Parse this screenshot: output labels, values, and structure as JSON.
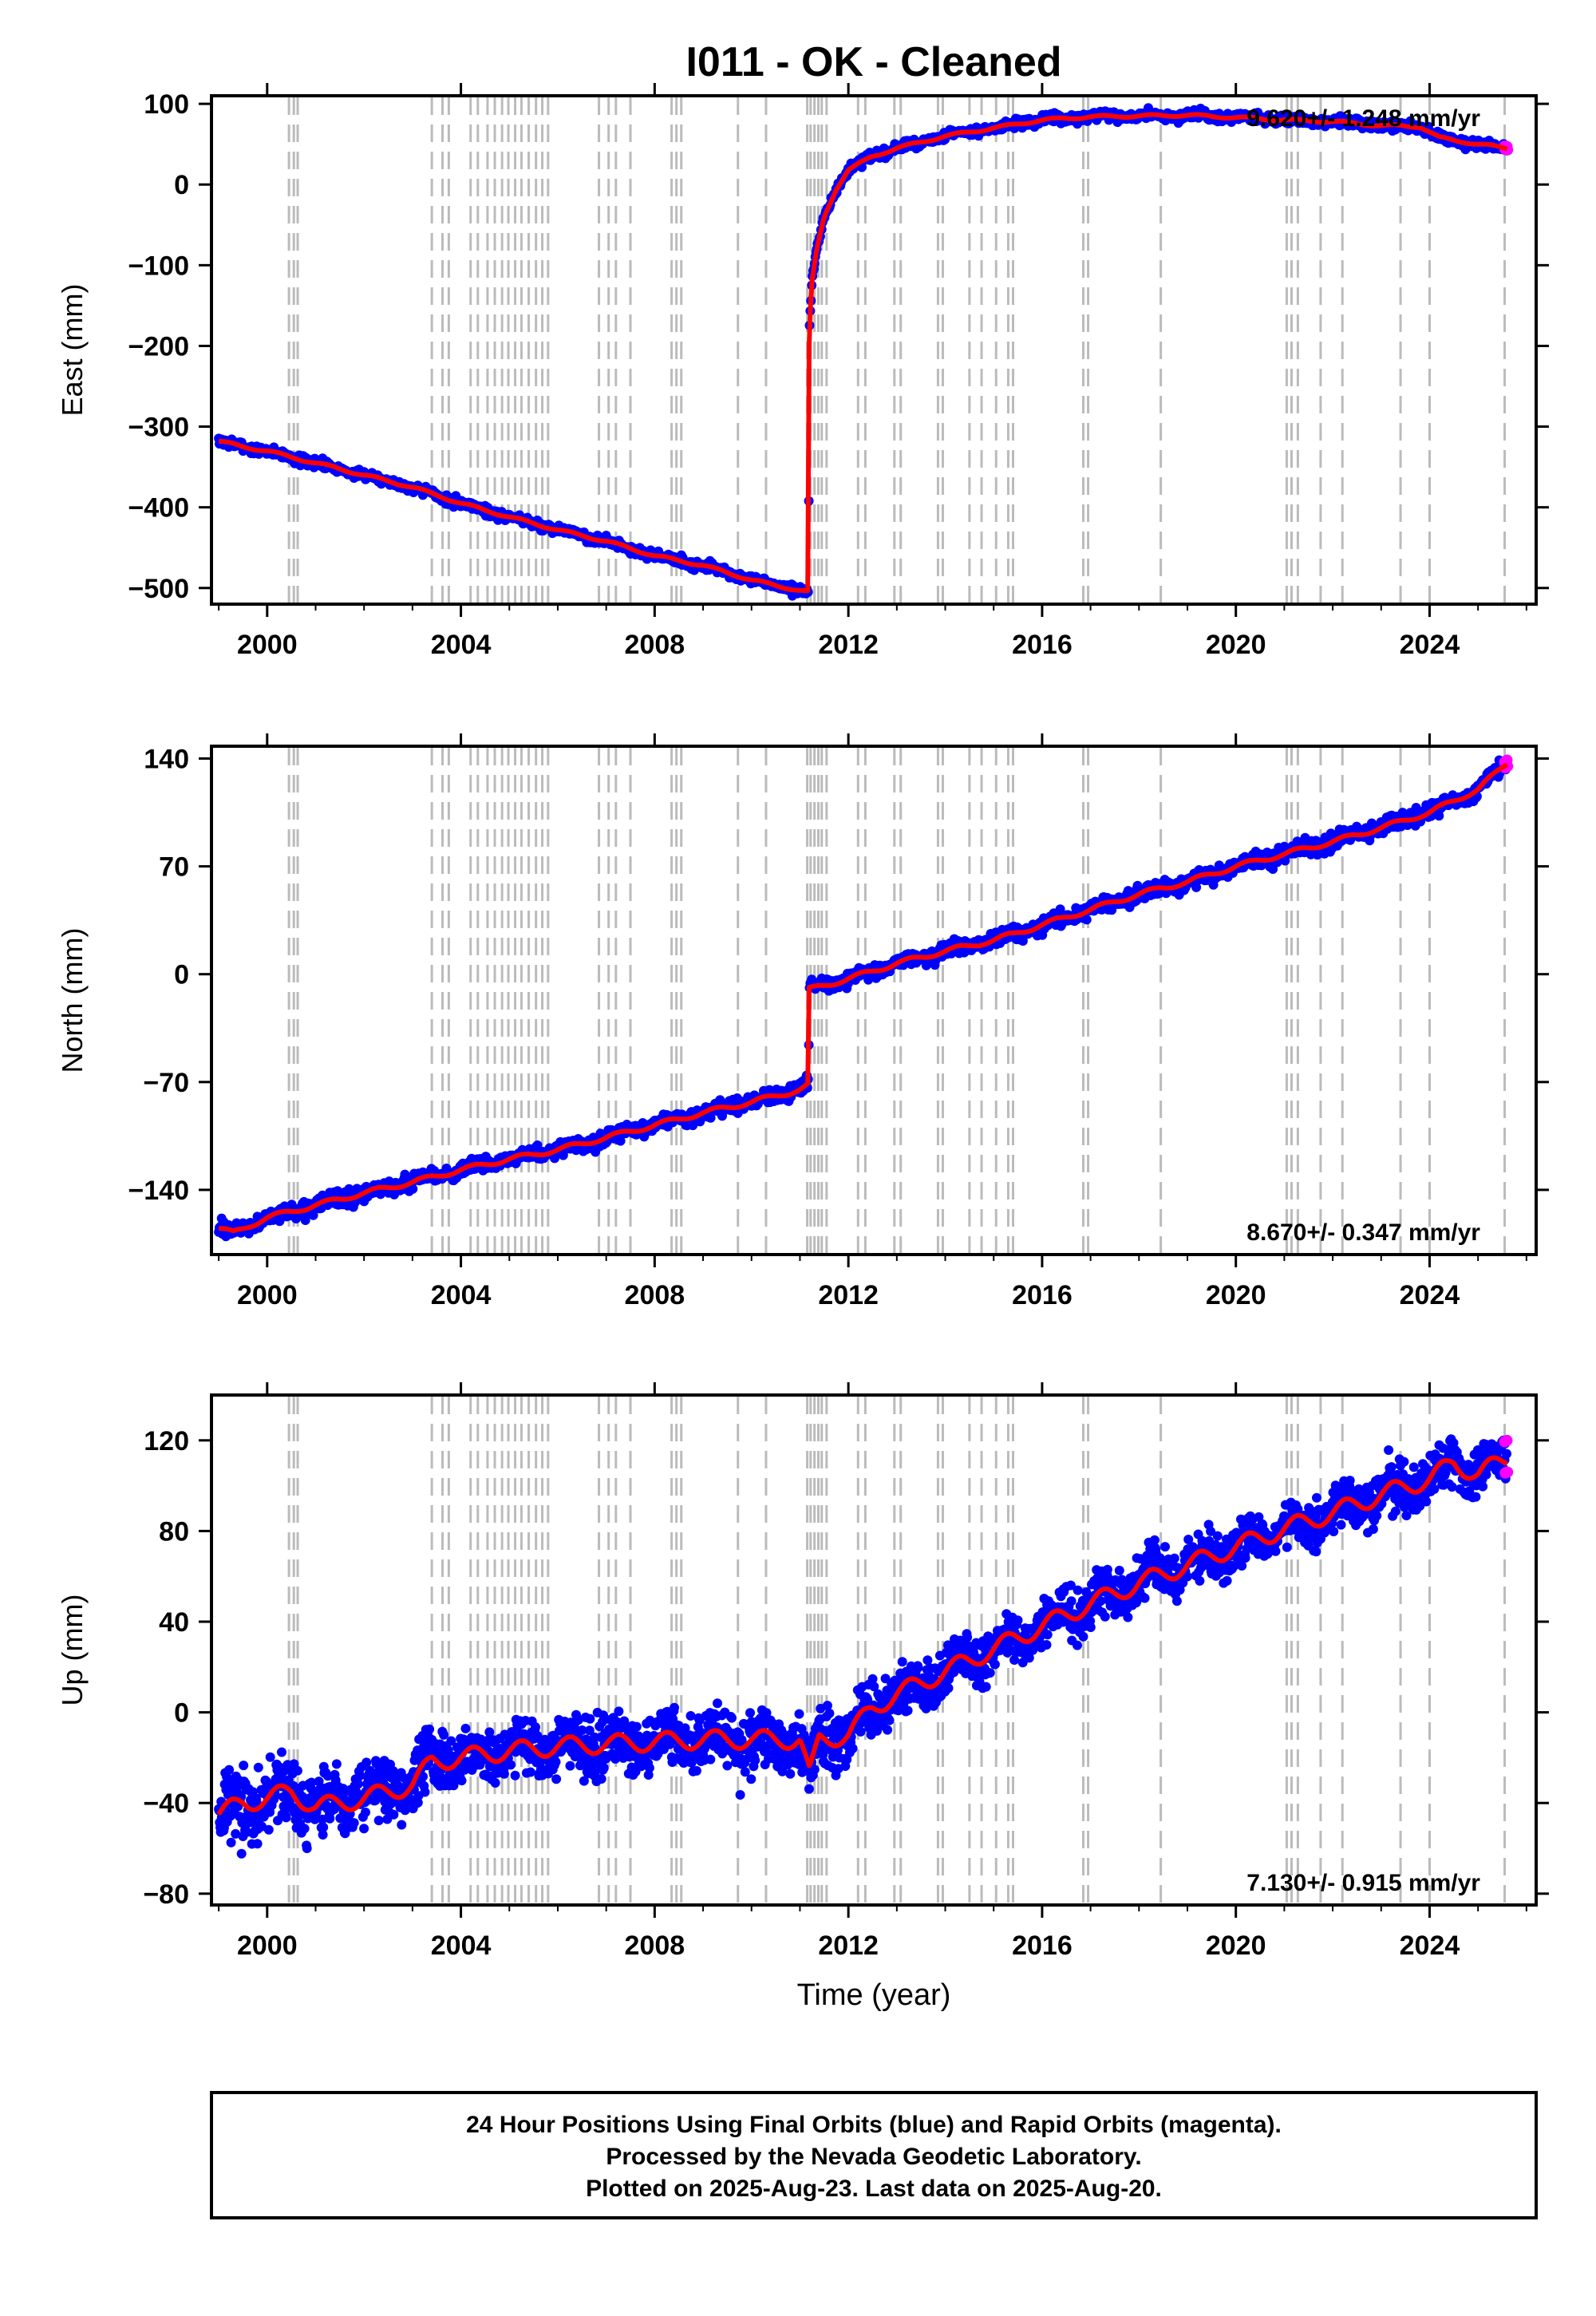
{
  "title": "I011  - OK - Cleaned",
  "xlabel": "Time (year)",
  "footer": {
    "line1": "24 Hour Positions Using Final Orbits (blue) and Rapid Orbits (magenta).",
    "line2": "Processed by the Nevada Geodetic Laboratory.",
    "line3": "Plotted on 2025-Aug-23. Last data on 2025-Aug-20."
  },
  "colors": {
    "final": "#0000ff",
    "rapid": "#ff00ff",
    "model": "#ff0000",
    "event_lines": "#bbbbbb",
    "axes": "#000000"
  },
  "chart_data": [
    {
      "type": "scatter",
      "panel": "east",
      "ylabel": "East (mm)",
      "rate_label": "9.620+/- 1.248 mm/yr",
      "rate_position": "top-right",
      "xlim": [
        1998.85,
        2026.2
      ],
      "ylim": [
        -520,
        110
      ],
      "xticks": [
        2000,
        2004,
        2008,
        2012,
        2016,
        2020,
        2024
      ],
      "yticks": [
        100,
        0,
        -100,
        -200,
        -300,
        -400,
        -500
      ],
      "ytick_labels": [
        "100",
        "0",
        "−100",
        "−200",
        "−300",
        "−400",
        "−500"
      ],
      "series": [
        {
          "x": [
            1999.0,
            1999.5,
            2000.0,
            2000.5,
            2001.0,
            2002.0,
            2003.0,
            2004.0,
            2005.0,
            2006.0,
            2007.0,
            2008.0,
            2009.0,
            2010.0,
            2010.5,
            2011.18,
            2011.19,
            2011.2,
            2011.25,
            2011.35,
            2011.5,
            2011.75,
            2012.0,
            2012.5,
            2013.0,
            2014.0,
            2015.0,
            2016.0,
            2017.0,
            2018.0,
            2019.0,
            2020.0,
            2021.0,
            2022.0,
            2023.0,
            2023.8,
            2024.2,
            2025.0,
            2025.6
          ],
          "y": [
            -318,
            -325,
            -330,
            -338,
            -345,
            -360,
            -375,
            -395,
            -412,
            -428,
            -442,
            -460,
            -472,
            -490,
            -497,
            -505,
            -200,
            -170,
            -120,
            -80,
            -40,
            -5,
            18,
            35,
            45,
            60,
            70,
            80,
            84,
            85,
            86,
            83,
            80,
            78,
            73,
            72,
            58,
            50,
            45
          ]
        }
      ]
    },
    {
      "type": "scatter",
      "panel": "north",
      "ylabel": "North (mm)",
      "rate_label": "8.670+/- 0.347 mm/yr",
      "rate_position": "bottom-right",
      "xlim": [
        1998.85,
        2026.2
      ],
      "ylim": [
        -182,
        148
      ],
      "xticks": [
        2000,
        2004,
        2008,
        2012,
        2016,
        2020,
        2024
      ],
      "yticks": [
        140,
        70,
        0,
        -70,
        -140
      ],
      "ytick_labels": [
        "140",
        "70",
        "0",
        "−70",
        "−140"
      ],
      "series": [
        {
          "x": [
            1999.0,
            1999.3,
            2000.0,
            2001.0,
            2002.0,
            2003.0,
            2004.0,
            2005.0,
            2006.0,
            2007.0,
            2008.0,
            2009.0,
            2010.0,
            2011.0,
            2011.18,
            2011.19,
            2012.0,
            2013.0,
            2014.0,
            2015.0,
            2016.0,
            2017.0,
            2018.0,
            2019.0,
            2020.0,
            2021.0,
            2022.0,
            2023.0,
            2024.0,
            2025.0,
            2025.6
          ],
          "y": [
            -165,
            -168,
            -158,
            -150,
            -142,
            -135,
            -127,
            -120,
            -114,
            -106,
            -98,
            -90,
            -83,
            -75,
            -72,
            -10,
            -3,
            7,
            15,
            22,
            32,
            42,
            52,
            60,
            70,
            78,
            86,
            95,
            105,
            120,
            137
          ]
        }
      ]
    },
    {
      "type": "scatter",
      "panel": "up",
      "ylabel": "Up (mm)",
      "rate_label": "7.130+/- 0.915 mm/yr",
      "rate_position": "bottom-right",
      "xlim": [
        1998.85,
        2026.2
      ],
      "ylim": [
        -85,
        140
      ],
      "xticks": [
        2000,
        2004,
        2008,
        2012,
        2016,
        2020,
        2024
      ],
      "yticks": [
        120,
        80,
        40,
        0,
        -40,
        -80
      ],
      "ytick_labels": [
        "120",
        "80",
        "40",
        "0",
        "−40",
        "−80"
      ],
      "series": [
        {
          "x": [
            1999.0,
            1999.5,
            2000.0,
            2000.5,
            2001.0,
            2002.0,
            2003.0,
            2003.4,
            2004.0,
            2005.0,
            2006.0,
            2007.0,
            2008.0,
            2009.0,
            2010.0,
            2011.0,
            2011.2,
            2011.4,
            2012.0,
            2012.5,
            2013.0,
            2014.0,
            2015.0,
            2016.0,
            2017.0,
            2018.0,
            2019.0,
            2020.0,
            2021.0,
            2022.0,
            2023.0,
            2024.0,
            2024.5,
            2025.0,
            2025.6
          ],
          "y": [
            -45,
            -40,
            -38,
            -35,
            -42,
            -38,
            -32,
            -22,
            -20,
            -17,
            -15,
            -14,
            -13,
            -12,
            -12,
            -12,
            -28,
            -12,
            -10,
            2,
            8,
            18,
            28,
            38,
            48,
            57,
            65,
            73,
            81,
            88,
            96,
            103,
            110,
            105,
            112
          ]
        }
      ]
    }
  ]
}
